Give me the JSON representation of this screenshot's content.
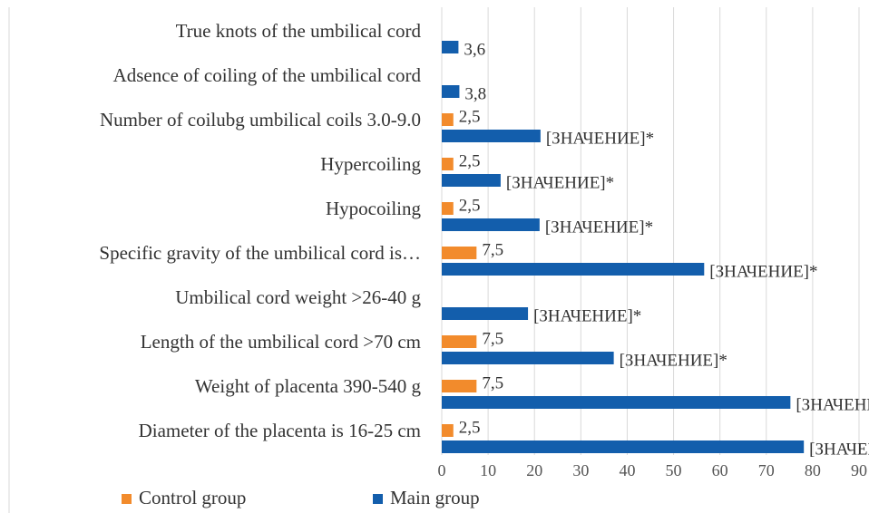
{
  "chart_data": {
    "type": "hbar",
    "categories": [
      "True knots of the umbilical cord",
      "Adsence of coiling of the umbilical cord",
      "Number of coilubg umbilical coils 3.0-9.0",
      "Hypercoiling",
      "Hypocoiling",
      "Specific gravity of the umbilical cord is…",
      "Umbilical cord weight >26-40 g",
      "Length of the umbilical cord >70 cm",
      "Weight of placenta 390-540 g",
      "Diameter of the placenta is 16-25 cm"
    ],
    "series": [
      {
        "name": "Control group",
        "color": "#f28b2c",
        "values": [
          null,
          null,
          2.5,
          2.5,
          2.5,
          7.5,
          null,
          7.5,
          7.5,
          2.5
        ],
        "value_labels": [
          null,
          null,
          "2,5",
          "2,5",
          "2,5",
          "7,5",
          null,
          "7,5",
          "7,5",
          "2,5"
        ]
      },
      {
        "name": "Main group",
        "color": "#135eac",
        "values": [
          3.6,
          3.8,
          21.3,
          12.7,
          21.1,
          56.6,
          18.6,
          37.1,
          75.2,
          78.1
        ],
        "value_labels": [
          "3,6",
          "3,8",
          "[ЗНАЧЕНИЕ]*",
          "[ЗНАЧЕНИЕ]*",
          "[ЗНАЧЕНИЕ]*",
          "[ЗНАЧЕНИЕ]*",
          "[ЗНАЧЕНИЕ]*",
          "[ЗНАЧЕНИЕ]*",
          "[ЗНАЧЕНИЕ]*",
          "[ЗНАЧЕНИЕ]*"
        ]
      }
    ],
    "xlim": [
      0,
      90
    ],
    "xticks": [
      0,
      10,
      20,
      30,
      40,
      50,
      60,
      70,
      80,
      90
    ],
    "grid": true,
    "legend": "bottom"
  }
}
